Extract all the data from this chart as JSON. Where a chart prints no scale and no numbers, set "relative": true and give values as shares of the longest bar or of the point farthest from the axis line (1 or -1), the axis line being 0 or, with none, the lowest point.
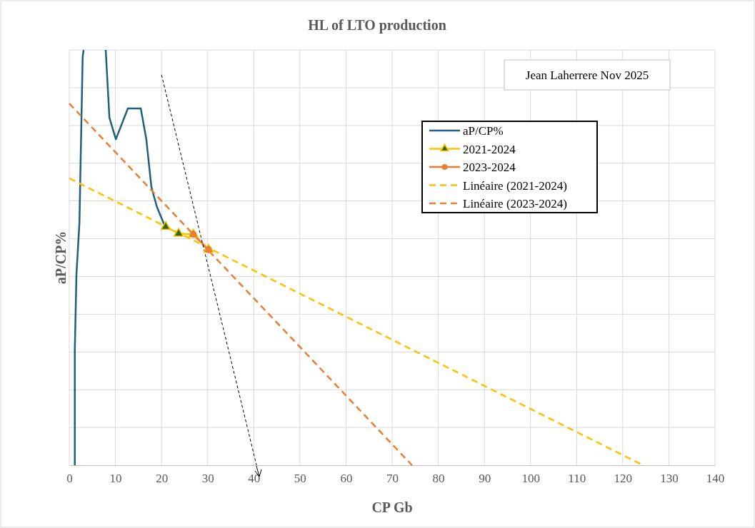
{
  "chart_data": {
    "type": "line",
    "title": "HL of LTO production",
    "xlabel": "CP Gb",
    "ylabel": "aP/CP%",
    "relative": true,
    "xlim": [
      0,
      140
    ],
    "xticks": [
      0,
      10,
      20,
      30,
      40,
      50,
      60,
      70,
      80,
      90,
      100,
      110,
      120,
      130,
      140
    ],
    "grid": true,
    "legend": "top right",
    "annotations": [
      "Jean Laherrere Nov 2025"
    ],
    "series": [
      {
        "name": "aP/CP%",
        "color": "#1f6080",
        "marker": "none",
        "line_style": "solid",
        "x": [
          1.2,
          1.2,
          1.55,
          2.2,
          2.9,
          3.1,
          5.5,
          7.9,
          8.7,
          10.1,
          12.7,
          15.5,
          16.7,
          17.8,
          19.0,
          20.8
        ],
        "values": [
          0,
          0.278,
          0.459,
          0.584,
          0.983,
          1,
          null,
          1,
          0.837,
          0.785,
          0.859,
          0.859,
          0.785,
          0.67,
          0.622,
          0.574
        ]
      },
      {
        "name": "2021-2024",
        "color": "#ffc000",
        "marker": "triangle",
        "line_style": "solid",
        "x": [
          20.9,
          23.7,
          26.9,
          30.2
        ],
        "values": [
          0.574,
          0.558,
          0.556,
          0.519
        ]
      },
      {
        "name": "2023-2024",
        "color": "#ed7d31",
        "marker": "circle",
        "line_style": "solid",
        "x": [
          26.9,
          30.2
        ],
        "values": [
          0.556,
          0.519
        ]
      },
      {
        "name": "Linéaire (2021-2024)",
        "color": "#ffc000",
        "marker": "none",
        "line_style": "dashed",
        "x": [
          0,
          124.4
        ],
        "values": [
          0.691,
          0
        ]
      },
      {
        "name": "Linéaire (2023-2024)",
        "color": "#ed7d31",
        "marker": "none",
        "line_style": "dashed",
        "x": [
          0,
          74.3
        ],
        "values": [
          0.871,
          0
        ]
      },
      {
        "color": "#000000",
        "marker": "none",
        "line_style": "dotted",
        "x": [
          20,
          40.6
        ],
        "values": [
          0.94,
          0
        ]
      }
    ]
  }
}
